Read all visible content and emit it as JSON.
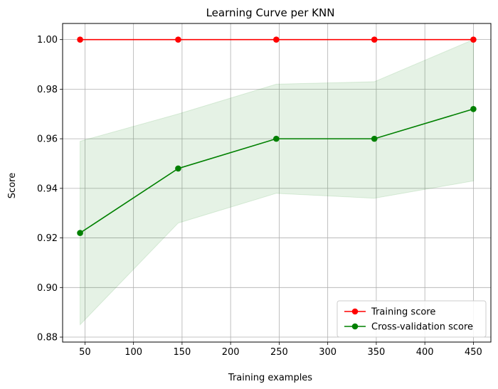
{
  "chart_data": {
    "type": "line",
    "title": "Learning Curve per KNN",
    "xlabel": "Training examples",
    "ylabel": "Score",
    "x": [
      45,
      146,
      247,
      348,
      450
    ],
    "xlim": [
      27,
      468
    ],
    "ylim": [
      0.878,
      1.0065
    ],
    "xticks": [
      50,
      100,
      150,
      200,
      250,
      300,
      350,
      400,
      450
    ],
    "yticks": [
      0.88,
      0.9,
      0.92,
      0.94,
      0.96,
      0.98,
      1.0
    ],
    "xtick_labels": [
      "50",
      "100",
      "150",
      "200",
      "250",
      "300",
      "350",
      "400",
      "450"
    ],
    "ytick_labels": [
      "0.88",
      "0.90",
      "0.92",
      "0.94",
      "0.96",
      "0.98",
      "1.00"
    ],
    "grid": true,
    "legend_position": "bottom-right",
    "series": [
      {
        "name": "Training score",
        "color": "#ff0000",
        "values": [
          1.0,
          1.0,
          1.0,
          1.0,
          1.0
        ],
        "band_lower": [
          1.0,
          1.0,
          1.0,
          1.0,
          1.0
        ],
        "band_upper": [
          1.0,
          1.0,
          1.0,
          1.0,
          1.0
        ]
      },
      {
        "name": "Cross-validation score",
        "color": "#008000",
        "band_color": "#008000",
        "values": [
          0.922,
          0.948,
          0.96,
          0.96,
          0.972
        ],
        "band_lower": [
          0.885,
          0.926,
          0.938,
          0.936,
          0.943
        ],
        "band_upper": [
          0.959,
          0.97,
          0.982,
          0.983,
          1.0
        ]
      }
    ]
  }
}
